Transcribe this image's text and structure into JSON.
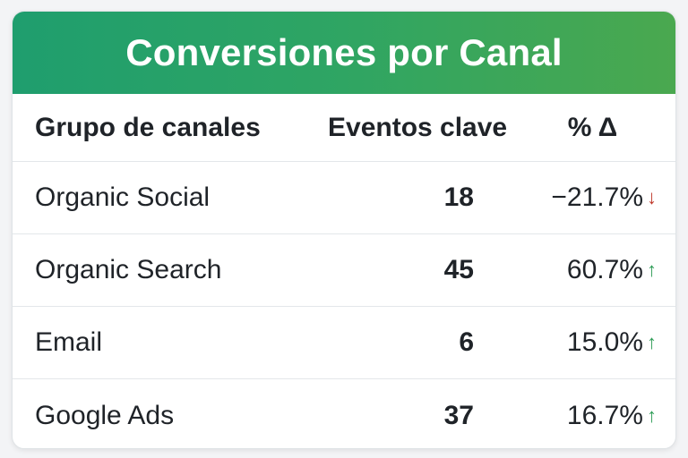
{
  "title": "Conversiones por Canal",
  "columns": {
    "channel": "Grupo de canales",
    "events": "Eventos clave",
    "delta": "% Δ"
  },
  "rows": [
    {
      "channel": "Organic Social",
      "events": "18",
      "delta": "−21.7%",
      "trend": "down"
    },
    {
      "channel": "Organic Search",
      "events": "45",
      "delta": "60.7%",
      "trend": "up"
    },
    {
      "channel": "Email",
      "events": "6",
      "delta": "15.0%",
      "trend": "up"
    },
    {
      "channel": "Google Ads",
      "events": "37",
      "delta": "16.7%",
      "trend": "up"
    }
  ],
  "colors": {
    "header_gradient_start": "#1f9e6e",
    "header_gradient_end": "#4aa84f",
    "up": "#2e9d57",
    "down": "#c0392b"
  },
  "icons": {
    "up": "arrow-up-icon",
    "down": "arrow-down-icon"
  }
}
